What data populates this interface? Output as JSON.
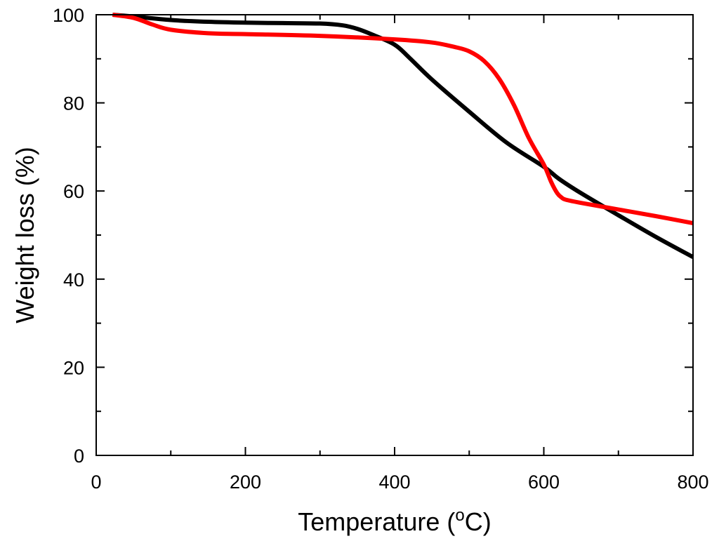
{
  "chart_data": {
    "type": "line",
    "title": "",
    "xlabel_main": "Temperature (",
    "xlabel_sup": "o",
    "xlabel_end": "C)",
    "ylabel": "Weight loss (%)",
    "xlim": [
      0,
      800
    ],
    "ylim": [
      0,
      100
    ],
    "xticks": [
      0,
      200,
      400,
      600,
      800
    ],
    "yticks": [
      0,
      20,
      40,
      60,
      80,
      100
    ],
    "xminor": [
      100,
      300,
      500,
      700
    ],
    "yminor": [
      10,
      30,
      50,
      70,
      90
    ],
    "grid": false,
    "series": [
      {
        "name": "black",
        "color": "#000000",
        "x": [
          22,
          50,
          100,
          150,
          200,
          250,
          300,
          330,
          350,
          370,
          400,
          420,
          450,
          500,
          550,
          600,
          620,
          650,
          700,
          750,
          800
        ],
        "y": [
          100,
          99.6,
          98.8,
          98.4,
          98.2,
          98.1,
          98.0,
          97.6,
          96.8,
          95.5,
          93.2,
          90.2,
          85.3,
          78.0,
          71.0,
          65.5,
          62.8,
          59.5,
          54.5,
          49.6,
          45.0
        ]
      },
      {
        "name": "red",
        "color": "#ff0000",
        "x": [
          22,
          50,
          75,
          100,
          150,
          200,
          300,
          400,
          450,
          480,
          500,
          520,
          540,
          560,
          580,
          600,
          610,
          618,
          624,
          630,
          650,
          700,
          750,
          800
        ],
        "y": [
          100,
          99.3,
          97.8,
          96.6,
          95.8,
          95.6,
          95.2,
          94.4,
          93.7,
          92.7,
          91.7,
          89.5,
          85.5,
          79.5,
          72.0,
          66.0,
          62.0,
          59.5,
          58.5,
          58.0,
          57.3,
          55.8,
          54.3,
          52.7
        ]
      }
    ]
  }
}
